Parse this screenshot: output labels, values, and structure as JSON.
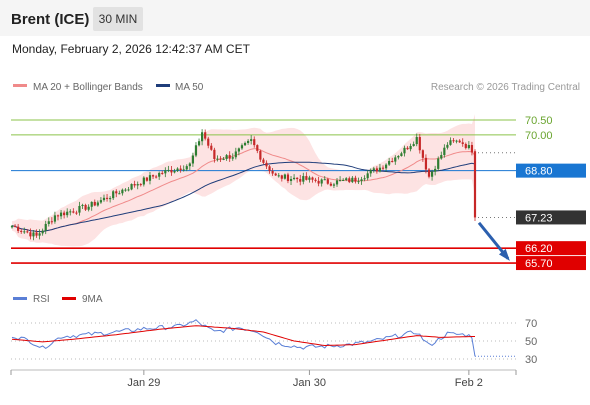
{
  "header": {
    "instrument": "Brent (ICE)",
    "timeframe": "30 MIN",
    "datetime": "Monday, February 2, 2026 12:42:37 AM CET"
  },
  "colors": {
    "up_candle": "#2e7d32",
    "down_candle": "#c62828",
    "bollinger_fill": "#fde3e3",
    "ma20": "#f08a8a",
    "ma50": "#1f3d7a",
    "resistance": "#8bc34a",
    "pivot": "#1976d2",
    "support": "#e00000",
    "last_price": "#333333",
    "rsi": "#5a7fd6",
    "rsi_ma": "#e00000",
    "arrow": "#2b5fae"
  },
  "chart_data": [
    {
      "type": "candlestick",
      "title": "",
      "legend": [
        {
          "label": "MA 20 + Bollinger Bands",
          "color": "#f08a8a"
        },
        {
          "label": "MA 50",
          "color": "#1f3d7a"
        }
      ],
      "legend_position": "top-left",
      "watermark": "Research © 2026 Trading Central",
      "x_ticks": [
        "Jan 29",
        "Jan 30",
        "Feb 2"
      ],
      "ylim": [
        65.4,
        70.8
      ],
      "price_levels": [
        {
          "value": 70.5,
          "label": "70.50",
          "kind": "resistance"
        },
        {
          "value": 70.0,
          "label": "70.00",
          "kind": "resistance"
        },
        {
          "value": 68.8,
          "label": "68.80",
          "kind": "pivot"
        },
        {
          "value": 67.23,
          "label": "67.23",
          "kind": "last_price"
        },
        {
          "value": 66.2,
          "label": "66.20",
          "kind": "support"
        },
        {
          "value": 65.7,
          "label": "65.70",
          "kind": "support"
        }
      ],
      "approx_close_path": [
        {
          "bar": 0,
          "close": 66.95
        },
        {
          "bar": 8,
          "close": 66.6
        },
        {
          "bar": 14,
          "close": 67.3
        },
        {
          "bar": 25,
          "close": 67.6
        },
        {
          "bar": 37,
          "close": 68.2
        },
        {
          "bar": 48,
          "close": 68.7
        },
        {
          "bar": 58,
          "close": 69.0
        },
        {
          "bar": 62,
          "close": 70.1
        },
        {
          "bar": 66,
          "close": 69.2
        },
        {
          "bar": 72,
          "close": 69.3
        },
        {
          "bar": 78,
          "close": 69.8
        },
        {
          "bar": 82,
          "close": 69.1
        },
        {
          "bar": 86,
          "close": 68.6
        },
        {
          "bar": 96,
          "close": 68.5
        },
        {
          "bar": 104,
          "close": 68.4
        },
        {
          "bar": 112,
          "close": 68.5
        },
        {
          "bar": 120,
          "close": 68.9
        },
        {
          "bar": 128,
          "close": 69.5
        },
        {
          "bar": 132,
          "close": 69.9
        },
        {
          "bar": 136,
          "close": 68.6
        },
        {
          "bar": 142,
          "close": 69.7
        },
        {
          "bar": 146,
          "close": 69.8
        },
        {
          "bar": 150,
          "close": 69.5
        },
        {
          "bar": 151,
          "close": 67.23
        }
      ]
    },
    {
      "type": "line",
      "title": "",
      "legend": [
        {
          "label": "RSI",
          "color": "#5a7fd6"
        },
        {
          "label": "9MA",
          "color": "#e00000"
        }
      ],
      "y_ticks": [
        70,
        50,
        30
      ],
      "ylim": [
        20,
        80
      ],
      "series": [
        {
          "name": "RSI",
          "points": [
            {
              "bar": 0,
              "value": 56
            },
            {
              "bar": 6,
              "value": 50
            },
            {
              "bar": 10,
              "value": 42
            },
            {
              "bar": 16,
              "value": 55
            },
            {
              "bar": 24,
              "value": 57
            },
            {
              "bar": 34,
              "value": 60
            },
            {
              "bar": 44,
              "value": 64
            },
            {
              "bar": 54,
              "value": 66
            },
            {
              "bar": 60,
              "value": 72
            },
            {
              "bar": 66,
              "value": 60
            },
            {
              "bar": 74,
              "value": 65
            },
            {
              "bar": 80,
              "value": 61
            },
            {
              "bar": 86,
              "value": 48
            },
            {
              "bar": 94,
              "value": 43
            },
            {
              "bar": 102,
              "value": 44
            },
            {
              "bar": 110,
              "value": 46
            },
            {
              "bar": 118,
              "value": 50
            },
            {
              "bar": 126,
              "value": 56
            },
            {
              "bar": 132,
              "value": 60
            },
            {
              "bar": 136,
              "value": 45
            },
            {
              "bar": 142,
              "value": 58
            },
            {
              "bar": 148,
              "value": 57
            },
            {
              "bar": 150,
              "value": 55
            },
            {
              "bar": 151,
              "value": 33
            }
          ]
        },
        {
          "name": "9MA",
          "points": [
            {
              "bar": 0,
              "value": 52
            },
            {
              "bar": 10,
              "value": 49
            },
            {
              "bar": 20,
              "value": 52
            },
            {
              "bar": 34,
              "value": 57
            },
            {
              "bar": 48,
              "value": 63
            },
            {
              "bar": 60,
              "value": 67
            },
            {
              "bar": 72,
              "value": 64
            },
            {
              "bar": 82,
              "value": 60
            },
            {
              "bar": 92,
              "value": 50
            },
            {
              "bar": 102,
              "value": 45
            },
            {
              "bar": 112,
              "value": 46
            },
            {
              "bar": 122,
              "value": 51
            },
            {
              "bar": 132,
              "value": 56
            },
            {
              "bar": 140,
              "value": 54
            },
            {
              "bar": 150,
              "value": 55
            }
          ]
        }
      ]
    }
  ]
}
